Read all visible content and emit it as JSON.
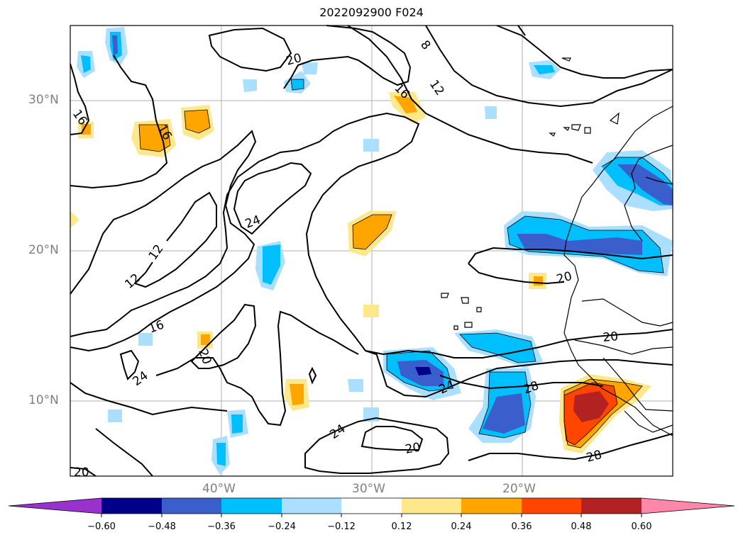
{
  "title": "2022092900 F024",
  "lat_labels": [
    "30°N",
    "20°N",
    "10°N"
  ],
  "lon_labels": [
    "40°W",
    "30°W",
    "20°W"
  ],
  "contour_labels": [
    "20",
    "8",
    "12",
    "16",
    "16",
    "16",
    "24",
    "12",
    "12",
    "16",
    "20",
    "24",
    "20",
    "20",
    "24",
    "28",
    "24",
    "20",
    "28",
    "20"
  ],
  "colorbar": {
    "ticks": [
      "−0.60",
      "−0.48",
      "−0.36",
      "−0.24",
      "−0.12",
      "0.12",
      "0.24",
      "0.36",
      "0.48",
      "0.60"
    ],
    "colors": [
      "#9932cc",
      "#00008b",
      "#3a5fcd",
      "#00bfff",
      "#aadfff",
      "#ffffff",
      "#ffe88c",
      "#ffa500",
      "#ff4500",
      "#b22222",
      "#ff88aa"
    ]
  }
}
